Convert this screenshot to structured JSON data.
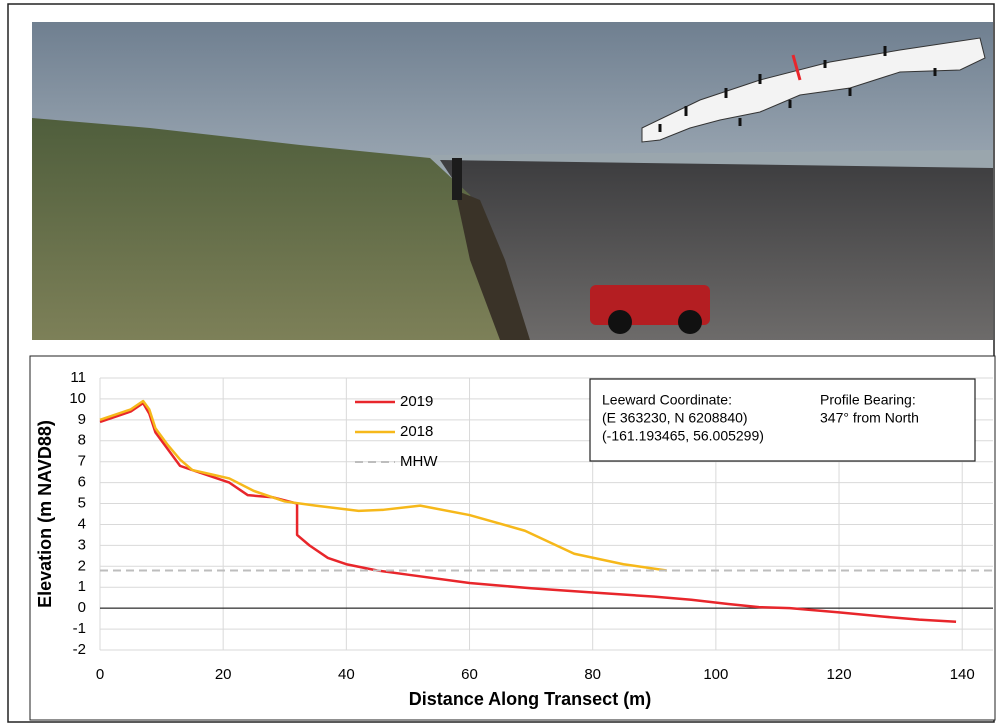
{
  "chart_data": {
    "type": "line",
    "x_label": "Distance Along Transect (m)",
    "y_label": "Elevation (m NAVD88)",
    "xlim": [
      0,
      145
    ],
    "ylim": [
      -2,
      11
    ],
    "xticks": [
      0,
      20,
      40,
      60,
      80,
      100,
      120,
      140
    ],
    "yticks": [
      -2,
      -1,
      0,
      1,
      2,
      3,
      4,
      5,
      6,
      7,
      8,
      9,
      10,
      11
    ],
    "grid": true,
    "legend": "top",
    "series": [
      {
        "name": "2019",
        "color": "#e8262b",
        "x": [
          0,
          3,
          5,
          7,
          8,
          9,
          11,
          13,
          15,
          18,
          21,
          24,
          28,
          32,
          32,
          34,
          37,
          40,
          45,
          50,
          60,
          70,
          80,
          90,
          96,
          102,
          107,
          112,
          120,
          127,
          133,
          139
        ],
        "values": [
          8.9,
          9.2,
          9.4,
          9.8,
          9.3,
          8.4,
          7.6,
          6.8,
          6.6,
          6.3,
          6.0,
          5.4,
          5.3,
          5.0,
          3.5,
          3.0,
          2.4,
          2.1,
          1.8,
          1.6,
          1.2,
          0.95,
          0.75,
          0.55,
          0.4,
          0.2,
          0.05,
          0,
          -0.2,
          -0.4,
          -0.55,
          -0.65
        ]
      },
      {
        "name": "2018",
        "color": "#f6b81a",
        "x": [
          0,
          3,
          5,
          7,
          8,
          9,
          11,
          13,
          15,
          18,
          21,
          25,
          30,
          35,
          42,
          46,
          52,
          60,
          69,
          77,
          85,
          92
        ],
        "values": [
          9.0,
          9.3,
          9.5,
          9.9,
          9.5,
          8.6,
          7.8,
          7.1,
          6.6,
          6.4,
          6.2,
          5.6,
          5.1,
          4.9,
          4.65,
          4.7,
          4.9,
          4.45,
          3.7,
          2.6,
          2.1,
          1.8
        ]
      },
      {
        "name": "MHW",
        "color": "#bdbdbd",
        "dashed": true,
        "x": [
          0,
          145
        ],
        "values": [
          1.8,
          1.8
        ]
      }
    ],
    "annotations": [
      "Leeward Coordinate:",
      "(E 363230, N 6208840)",
      "(-161.193465, 56.005299)",
      "Profile Bearing:",
      "347° from North"
    ]
  }
}
